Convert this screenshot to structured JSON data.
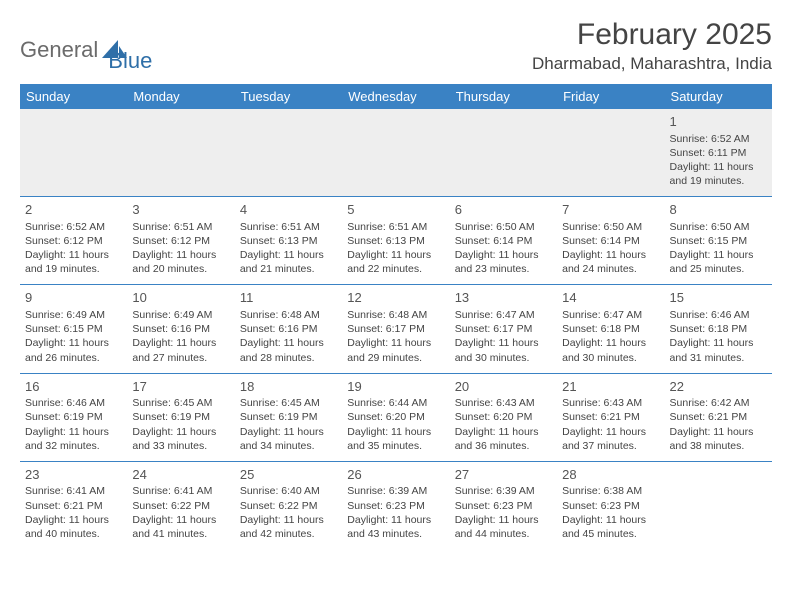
{
  "logo": {
    "part1": "General",
    "part2": "Blue"
  },
  "title": "February 2025",
  "location": "Dharmabad, Maharashtra, India",
  "colors": {
    "header_bg": "#3a82c4",
    "header_text": "#ffffff",
    "body_text": "#444444",
    "logo_gray": "#6b6b6b",
    "logo_blue": "#2f6fa8",
    "first_row_bg": "#eeeeee",
    "border": "#3a82c4",
    "page_bg": "#ffffff"
  },
  "typography": {
    "title_fontsize": 30,
    "location_fontsize": 17,
    "dayheader_fontsize": 13,
    "daynum_fontsize": 13,
    "cell_fontsize": 10.5
  },
  "day_headers": [
    "Sunday",
    "Monday",
    "Tuesday",
    "Wednesday",
    "Thursday",
    "Friday",
    "Saturday"
  ],
  "weeks": [
    [
      null,
      null,
      null,
      null,
      null,
      null,
      {
        "n": "1",
        "sr": "6:52 AM",
        "ss": "6:11 PM",
        "dl": "11 hours and 19 minutes."
      }
    ],
    [
      {
        "n": "2",
        "sr": "6:52 AM",
        "ss": "6:12 PM",
        "dl": "11 hours and 19 minutes."
      },
      {
        "n": "3",
        "sr": "6:51 AM",
        "ss": "6:12 PM",
        "dl": "11 hours and 20 minutes."
      },
      {
        "n": "4",
        "sr": "6:51 AM",
        "ss": "6:13 PM",
        "dl": "11 hours and 21 minutes."
      },
      {
        "n": "5",
        "sr": "6:51 AM",
        "ss": "6:13 PM",
        "dl": "11 hours and 22 minutes."
      },
      {
        "n": "6",
        "sr": "6:50 AM",
        "ss": "6:14 PM",
        "dl": "11 hours and 23 minutes."
      },
      {
        "n": "7",
        "sr": "6:50 AM",
        "ss": "6:14 PM",
        "dl": "11 hours and 24 minutes."
      },
      {
        "n": "8",
        "sr": "6:50 AM",
        "ss": "6:15 PM",
        "dl": "11 hours and 25 minutes."
      }
    ],
    [
      {
        "n": "9",
        "sr": "6:49 AM",
        "ss": "6:15 PM",
        "dl": "11 hours and 26 minutes."
      },
      {
        "n": "10",
        "sr": "6:49 AM",
        "ss": "6:16 PM",
        "dl": "11 hours and 27 minutes."
      },
      {
        "n": "11",
        "sr": "6:48 AM",
        "ss": "6:16 PM",
        "dl": "11 hours and 28 minutes."
      },
      {
        "n": "12",
        "sr": "6:48 AM",
        "ss": "6:17 PM",
        "dl": "11 hours and 29 minutes."
      },
      {
        "n": "13",
        "sr": "6:47 AM",
        "ss": "6:17 PM",
        "dl": "11 hours and 30 minutes."
      },
      {
        "n": "14",
        "sr": "6:47 AM",
        "ss": "6:18 PM",
        "dl": "11 hours and 30 minutes."
      },
      {
        "n": "15",
        "sr": "6:46 AM",
        "ss": "6:18 PM",
        "dl": "11 hours and 31 minutes."
      }
    ],
    [
      {
        "n": "16",
        "sr": "6:46 AM",
        "ss": "6:19 PM",
        "dl": "11 hours and 32 minutes."
      },
      {
        "n": "17",
        "sr": "6:45 AM",
        "ss": "6:19 PM",
        "dl": "11 hours and 33 minutes."
      },
      {
        "n": "18",
        "sr": "6:45 AM",
        "ss": "6:19 PM",
        "dl": "11 hours and 34 minutes."
      },
      {
        "n": "19",
        "sr": "6:44 AM",
        "ss": "6:20 PM",
        "dl": "11 hours and 35 minutes."
      },
      {
        "n": "20",
        "sr": "6:43 AM",
        "ss": "6:20 PM",
        "dl": "11 hours and 36 minutes."
      },
      {
        "n": "21",
        "sr": "6:43 AM",
        "ss": "6:21 PM",
        "dl": "11 hours and 37 minutes."
      },
      {
        "n": "22",
        "sr": "6:42 AM",
        "ss": "6:21 PM",
        "dl": "11 hours and 38 minutes."
      }
    ],
    [
      {
        "n": "23",
        "sr": "6:41 AM",
        "ss": "6:21 PM",
        "dl": "11 hours and 40 minutes."
      },
      {
        "n": "24",
        "sr": "6:41 AM",
        "ss": "6:22 PM",
        "dl": "11 hours and 41 minutes."
      },
      {
        "n": "25",
        "sr": "6:40 AM",
        "ss": "6:22 PM",
        "dl": "11 hours and 42 minutes."
      },
      {
        "n": "26",
        "sr": "6:39 AM",
        "ss": "6:23 PM",
        "dl": "11 hours and 43 minutes."
      },
      {
        "n": "27",
        "sr": "6:39 AM",
        "ss": "6:23 PM",
        "dl": "11 hours and 44 minutes."
      },
      {
        "n": "28",
        "sr": "6:38 AM",
        "ss": "6:23 PM",
        "dl": "11 hours and 45 minutes."
      },
      null
    ]
  ],
  "labels": {
    "sunrise": "Sunrise:",
    "sunset": "Sunset:",
    "daylight": "Daylight:"
  }
}
